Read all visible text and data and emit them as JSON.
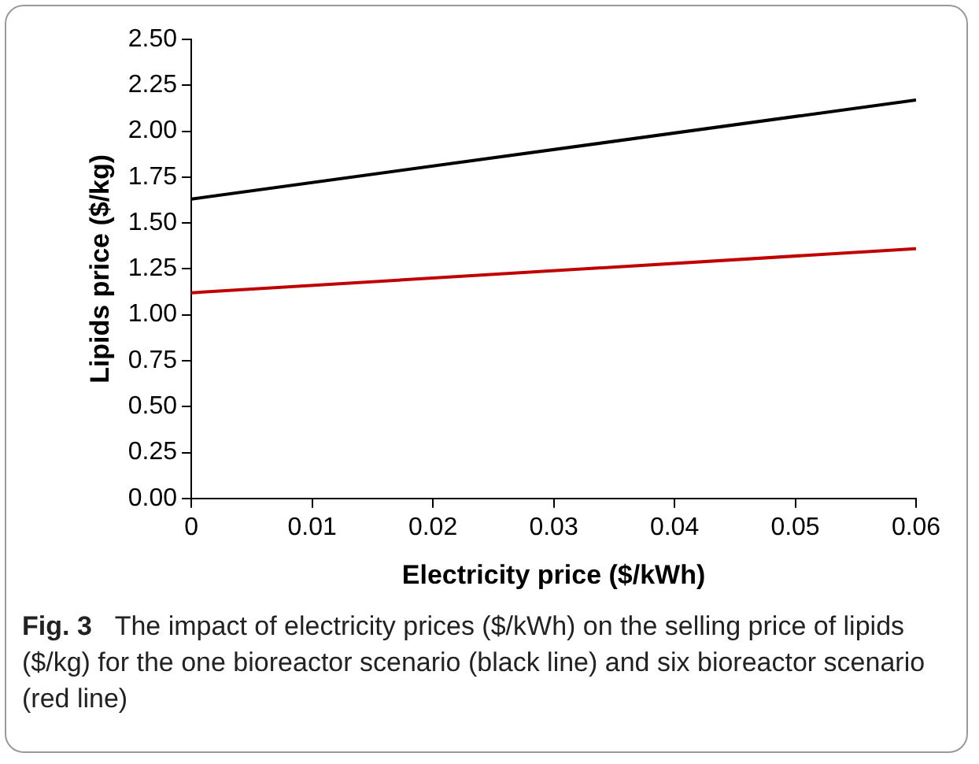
{
  "chart_data": {
    "type": "line",
    "xlabel": "Electricity price ($/kWh)",
    "ylabel": "Lipids price ($/kg)",
    "x": [
      0,
      0.06
    ],
    "series": [
      {
        "color": "#000000",
        "values": [
          1.63,
          2.17
        ]
      },
      {
        "color": "#c00000",
        "values": [
          1.12,
          1.36
        ]
      }
    ],
    "xlim": [
      0,
      0.06
    ],
    "xticks": [
      0,
      0.01,
      0.02,
      0.03,
      0.04,
      0.05,
      0.06
    ],
    "ylim": [
      0,
      2.5
    ],
    "yticks": [
      {
        "value": 0,
        "label": "0.00"
      },
      {
        "value": 0.25,
        "label": "0.25"
      },
      {
        "value": 0.5,
        "label": "0.50"
      },
      {
        "value": 0.75,
        "label": "0.75"
      },
      {
        "value": 1,
        "label": "1.00"
      },
      {
        "value": 1.25,
        "label": "1.25"
      },
      {
        "value": 1.5,
        "label": "1.50"
      },
      {
        "value": 1.75,
        "label": "1.75"
      },
      {
        "value": 2,
        "label": "2.00"
      },
      {
        "value": 2.25,
        "label": "2.25"
      },
      {
        "value": 2.5,
        "label": "2.50"
      }
    ],
    "grid": false,
    "legend": false,
    "marker": "none",
    "line_style": "solid",
    "annotations": [
      "Fig. 3",
      "The impact of electricity prices ($/kWh) on the selling price of lipids ($/kg) for the one bioreactor scenario (black line) and six bioreactor scenario (red line)"
    ]
  }
}
